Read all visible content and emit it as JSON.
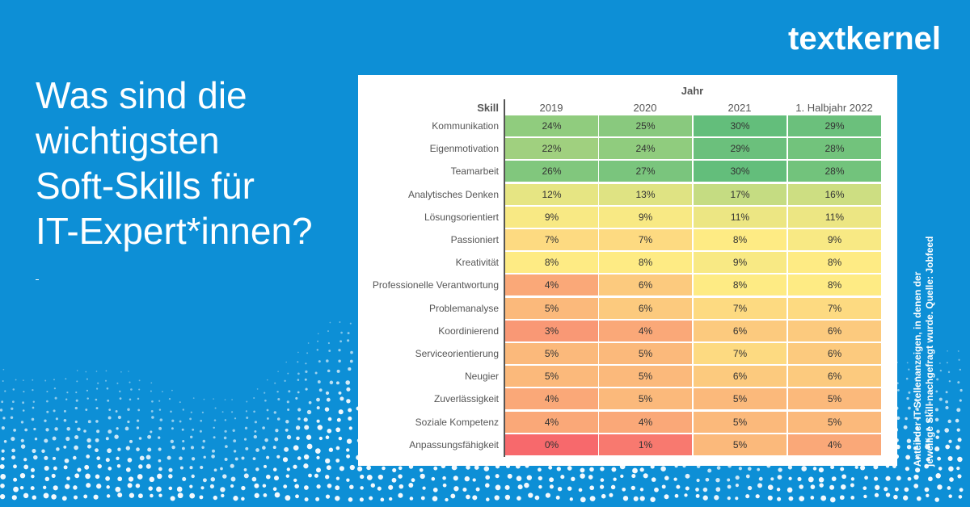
{
  "brand": {
    "logo_text": "textkernel"
  },
  "headline": [
    "Was sind die",
    "wichtigsten",
    "Soft-Skills für",
    "IT-Expert*innen?"
  ],
  "source_note": [
    "Anteil der IT-Stellenanzeigen, in denen der",
    "jeweilige Skill nachgefragt wurde. Quelle: Jobfeed"
  ],
  "colors": {
    "background": "#0d8fd6",
    "panel": "#ffffff",
    "text": "#555555"
  },
  "chart_data": {
    "type": "table",
    "column_group_label": "Jahr",
    "row_header": "Skill",
    "columns": [
      "2019",
      "2020",
      "2021",
      "1. Halbjahr 2022"
    ],
    "value_suffix": "%",
    "rows": [
      {
        "skill": "Kommunikation",
        "values": [
          24,
          25,
          30,
          29
        ]
      },
      {
        "skill": "Eigenmotivation",
        "values": [
          22,
          24,
          29,
          28
        ]
      },
      {
        "skill": "Teamarbeit",
        "values": [
          26,
          27,
          30,
          28
        ]
      },
      {
        "skill": "Analytisches Denken",
        "values": [
          12,
          13,
          17,
          16
        ]
      },
      {
        "skill": "Lösungsorientiert",
        "values": [
          9,
          9,
          11,
          11
        ]
      },
      {
        "skill": "Passioniert",
        "values": [
          7,
          7,
          8,
          9
        ]
      },
      {
        "skill": "Kreativität",
        "values": [
          8,
          8,
          9,
          8
        ]
      },
      {
        "skill": "Professionelle Verantwortung",
        "values": [
          4,
          6,
          8,
          8
        ]
      },
      {
        "skill": "Problemanalyse",
        "values": [
          5,
          6,
          7,
          7
        ]
      },
      {
        "skill": "Koordinierend",
        "values": [
          3,
          4,
          6,
          6
        ]
      },
      {
        "skill": "Serviceorientierung",
        "values": [
          5,
          5,
          7,
          6
        ]
      },
      {
        "skill": "Neugier",
        "values": [
          5,
          5,
          6,
          6
        ]
      },
      {
        "skill": "Zuverlässigkeit",
        "values": [
          4,
          5,
          5,
          5
        ]
      },
      {
        "skill": "Soziale Kompetenz",
        "values": [
          4,
          4,
          5,
          5
        ]
      },
      {
        "skill": "Anpassungsfähigkeit",
        "values": [
          0,
          1,
          5,
          4
        ]
      }
    ]
  }
}
